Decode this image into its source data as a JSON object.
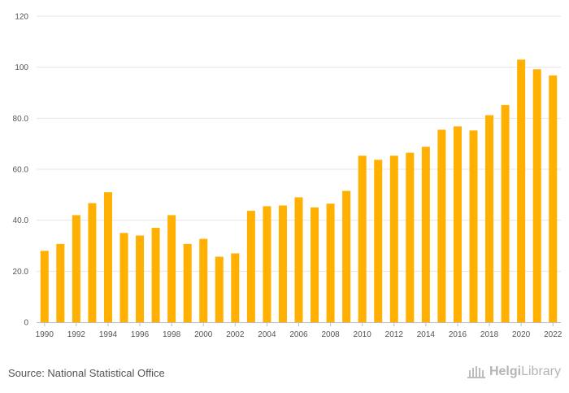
{
  "chart_data": {
    "type": "bar",
    "title": "",
    "xlabel": "",
    "ylabel": "",
    "categories": [
      "1990",
      "1991",
      "1992",
      "1993",
      "1994",
      "1995",
      "1996",
      "1997",
      "1998",
      "1999",
      "2000",
      "2001",
      "2002",
      "2003",
      "2004",
      "2005",
      "2006",
      "2007",
      "2008",
      "2009",
      "2010",
      "2011",
      "2012",
      "2013",
      "2014",
      "2015",
      "2016",
      "2017",
      "2018",
      "2019",
      "2020",
      "2021",
      "2022"
    ],
    "values": [
      28,
      30.7,
      42,
      46.7,
      51,
      35,
      34,
      37,
      42,
      30.7,
      32.7,
      25.7,
      27,
      43.7,
      45.5,
      45.8,
      49,
      45,
      46.5,
      51.5,
      65.3,
      63.7,
      65.3,
      66.5,
      68.8,
      75.5,
      76.8,
      75.2,
      81.2,
      85.2,
      103,
      99.2,
      96.8
    ],
    "ylim": [
      0,
      120
    ],
    "yticks": [
      0,
      20,
      40,
      60,
      80,
      100,
      120
    ],
    "ytick_labels": [
      "0",
      "20.0",
      "40.0",
      "60.0",
      "80.0",
      "100",
      "120"
    ],
    "xtick_labels": [
      "1990",
      "1992",
      "1994",
      "1996",
      "1998",
      "2000",
      "2002",
      "2004",
      "2006",
      "2008",
      "2010",
      "2012",
      "2014",
      "2016",
      "2018",
      "2020",
      "2022"
    ],
    "bar_color": "#FFB000",
    "grid_color": "#e6e6e6",
    "grid": true
  },
  "footer": {
    "source": "Source: National Statistical Office",
    "logo_bold": "Helgi",
    "logo_rest": "Library"
  }
}
